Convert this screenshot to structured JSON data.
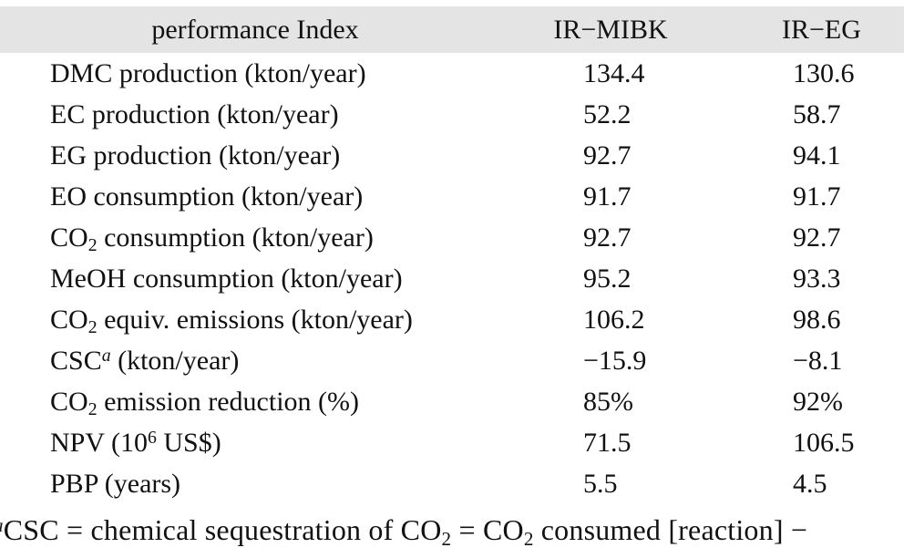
{
  "table": {
    "header": {
      "col1": "performance Index",
      "col2": "IR−MIBK",
      "col3": "IR−EG",
      "background_color": "#e4e4e4"
    },
    "columns": [
      "performance Index",
      "IR−MIBK",
      "IR−EG"
    ],
    "rows": [
      {
        "label": [
          {
            "t": "DMC production (kton/year)"
          }
        ],
        "mibk": "134.4",
        "eg": "130.6"
      },
      {
        "label": [
          {
            "t": "EC production (kton/year)"
          }
        ],
        "mibk": "52.2",
        "eg": "58.7"
      },
      {
        "label": [
          {
            "t": "EG production (kton/year)"
          }
        ],
        "mibk": "92.7",
        "eg": "94.1"
      },
      {
        "label": [
          {
            "t": "EO consumption (kton/year)"
          }
        ],
        "mibk": "91.7",
        "eg": "91.7"
      },
      {
        "label": [
          {
            "t": "CO"
          },
          {
            "t": "2",
            "s": "sub"
          },
          {
            "t": " consumption (kton/year)"
          }
        ],
        "mibk": "92.7",
        "eg": "92.7"
      },
      {
        "label": [
          {
            "t": "MeOH consumption (kton/year)"
          }
        ],
        "mibk": "95.2",
        "eg": "93.3"
      },
      {
        "label": [
          {
            "t": "CO"
          },
          {
            "t": "2",
            "s": "sub"
          },
          {
            "t": " equiv. emissions (kton/year)"
          }
        ],
        "mibk": "106.2",
        "eg": "98.6"
      },
      {
        "label": [
          {
            "t": "CSC"
          },
          {
            "t": "a",
            "s": "sup-italic"
          },
          {
            "t": " (kton/year)"
          }
        ],
        "mibk": "−15.9",
        "eg": "−8.1"
      },
      {
        "label": [
          {
            "t": "CO"
          },
          {
            "t": "2",
            "s": "sub"
          },
          {
            "t": " emission reduction (%)"
          }
        ],
        "mibk": "85%",
        "eg": "92%"
      },
      {
        "label": [
          {
            "t": "NPV (10"
          },
          {
            "t": "6",
            "s": "sup"
          },
          {
            "t": " US$)"
          }
        ],
        "mibk": "71.5",
        "eg": "106.5"
      },
      {
        "label": [
          {
            "t": "PBP (years)"
          }
        ],
        "mibk": "5.5",
        "eg": "4.5"
      }
    ]
  },
  "footnote": {
    "segments": [
      {
        "t": "a",
        "s": "sup-italic"
      },
      {
        "t": "CSC = chemical sequestration of CO"
      },
      {
        "t": "2",
        "s": "sub"
      },
      {
        "t": " = CO"
      },
      {
        "t": "2",
        "s": "sub"
      },
      {
        "t": " consumed [reaction] −"
      }
    ]
  }
}
